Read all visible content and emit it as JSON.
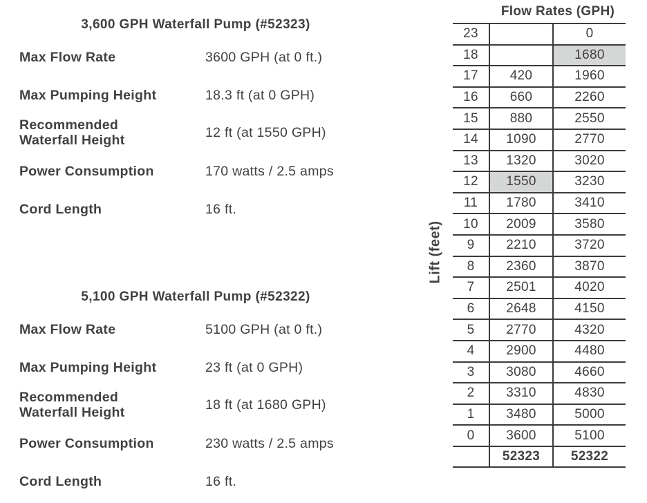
{
  "page": {
    "background": "#ffffff"
  },
  "colors": {
    "text": "#414042",
    "table_border": "#3b3b3d",
    "highlight_cell": "#d5d6d6"
  },
  "pumps": [
    {
      "title": "3,600 GPH Waterfall Pump (#52323)",
      "specs": [
        {
          "label": "Max Flow Rate",
          "value": "3600 GPH (at 0 ft.)"
        },
        {
          "label": "Max Pumping Height",
          "value": "18.3 ft (at 0 GPH)"
        },
        {
          "label": "Recommended\nWaterfall Height",
          "value": "12 ft (at 1550 GPH)"
        },
        {
          "label": "Power Consumption",
          "value": "170 watts / 2.5 amps"
        },
        {
          "label": "Cord Length",
          "value": "16 ft."
        }
      ]
    },
    {
      "title": "5,100 GPH Waterfall Pump (#52322)",
      "specs": [
        {
          "label": "Max Flow Rate",
          "value": "5100 GPH (at 0 ft.)"
        },
        {
          "label": "Max Pumping Height",
          "value": "23 ft (at 0 GPH)"
        },
        {
          "label": "Recommended\nWaterfall Height",
          "value": "18 ft (at 1680 GPH)"
        },
        {
          "label": "Power Consumption",
          "value": "230 watts / 2.5 amps"
        },
        {
          "label": "Cord Length",
          "value": "16 ft."
        }
      ]
    }
  ],
  "flow_table": {
    "title": "Flow Rates (GPH)",
    "y_axis_label": "Lift (feet)",
    "model_columns": [
      "52323",
      "52322"
    ],
    "rows": [
      {
        "lift": "23",
        "p52323": "",
        "p52322": "0"
      },
      {
        "lift": "18",
        "p52323": "",
        "p52322": "1680",
        "highlight": "p52322"
      },
      {
        "lift": "17",
        "p52323": "420",
        "p52322": "1960"
      },
      {
        "lift": "16",
        "p52323": "660",
        "p52322": "2260"
      },
      {
        "lift": "15",
        "p52323": "880",
        "p52322": "2550"
      },
      {
        "lift": "14",
        "p52323": "1090",
        "p52322": "2770"
      },
      {
        "lift": "13",
        "p52323": "1320",
        "p52322": "3020"
      },
      {
        "lift": "12",
        "p52323": "1550",
        "p52322": "3230",
        "highlight": "p52323"
      },
      {
        "lift": "11",
        "p52323": "1780",
        "p52322": "3410"
      },
      {
        "lift": "10",
        "p52323": "2009",
        "p52322": "3580"
      },
      {
        "lift": "9",
        "p52323": "2210",
        "p52322": "3720"
      },
      {
        "lift": "8",
        "p52323": "2360",
        "p52322": "3870"
      },
      {
        "lift": "7",
        "p52323": "2501",
        "p52322": "4020"
      },
      {
        "lift": "6",
        "p52323": "2648",
        "p52322": "4150"
      },
      {
        "lift": "5",
        "p52323": "2770",
        "p52322": "4320"
      },
      {
        "lift": "4",
        "p52323": "2900",
        "p52322": "4480"
      },
      {
        "lift": "3",
        "p52323": "3080",
        "p52322": "4660"
      },
      {
        "lift": "2",
        "p52323": "3310",
        "p52322": "4830"
      },
      {
        "lift": "1",
        "p52323": "3480",
        "p52322": "5000"
      },
      {
        "lift": "0",
        "p52323": "3600",
        "p52322": "5100"
      },
      {
        "lift": "",
        "p52323": "52323",
        "p52322": "52322",
        "footer": true
      }
    ]
  }
}
